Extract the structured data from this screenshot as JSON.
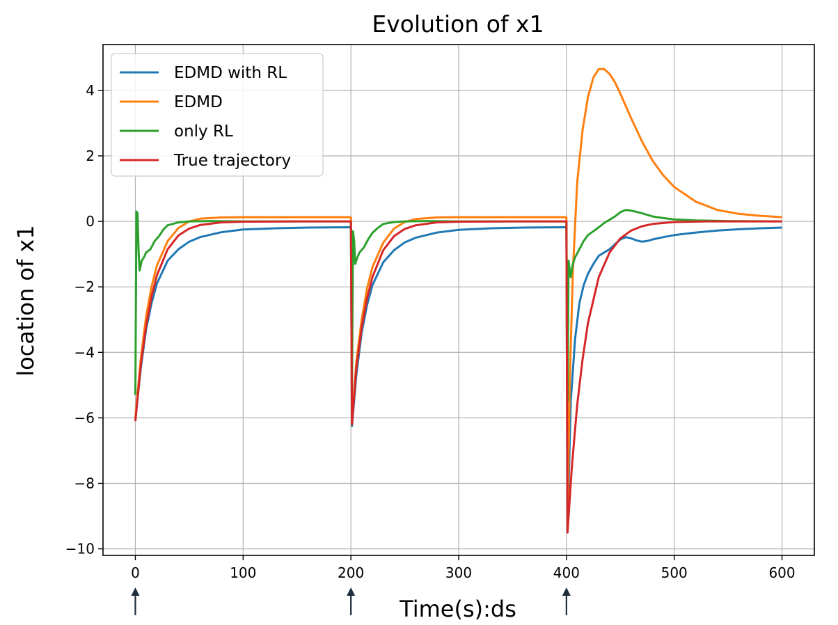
{
  "chart_data": {
    "type": "line",
    "title": "Evolution of x1",
    "xlabel": "Time(s):ds",
    "ylabel": "location of x1",
    "xlim": [
      -30,
      630
    ],
    "ylim": [
      -10.2,
      5.4
    ],
    "xticks": [
      0,
      100,
      200,
      300,
      400,
      500,
      600
    ],
    "yticks": [
      -10,
      -8,
      -6,
      -4,
      -2,
      0,
      2,
      4
    ],
    "xtick_labels": [
      "0",
      "100",
      "200",
      "300",
      "400",
      "500",
      "600"
    ],
    "ytick_labels": [
      "−10",
      "−8",
      "−6",
      "−4",
      "−2",
      "0",
      "2",
      "4"
    ],
    "grid": true,
    "legend_position": "top-left",
    "markers": {
      "type": "arrow-up",
      "x": [
        0,
        200,
        400
      ],
      "color": "#1f2d3a"
    },
    "series": [
      {
        "name": "EDMD with RL",
        "color": "#1f77b4",
        "points": [
          [
            0,
            -6.05
          ],
          [
            5,
            -4.5
          ],
          [
            10,
            -3.3
          ],
          [
            15,
            -2.5
          ],
          [
            20,
            -1.9
          ],
          [
            30,
            -1.2
          ],
          [
            40,
            -0.85
          ],
          [
            50,
            -0.62
          ],
          [
            60,
            -0.48
          ],
          [
            80,
            -0.33
          ],
          [
            100,
            -0.25
          ],
          [
            130,
            -0.21
          ],
          [
            160,
            -0.19
          ],
          [
            199,
            -0.18
          ],
          [
            200,
            -0.2
          ],
          [
            201,
            -6.25
          ],
          [
            205,
            -4.7
          ],
          [
            210,
            -3.4
          ],
          [
            215,
            -2.55
          ],
          [
            220,
            -1.95
          ],
          [
            230,
            -1.25
          ],
          [
            240,
            -0.88
          ],
          [
            250,
            -0.64
          ],
          [
            260,
            -0.5
          ],
          [
            280,
            -0.34
          ],
          [
            300,
            -0.26
          ],
          [
            330,
            -0.21
          ],
          [
            360,
            -0.19
          ],
          [
            399,
            -0.18
          ],
          [
            400,
            -0.2
          ],
          [
            401,
            -9.45
          ],
          [
            404,
            -5.5
          ],
          [
            408,
            -3.6
          ],
          [
            412,
            -2.5
          ],
          [
            416,
            -1.95
          ],
          [
            420,
            -1.6
          ],
          [
            425,
            -1.3
          ],
          [
            430,
            -1.05
          ],
          [
            435,
            -0.95
          ],
          [
            440,
            -0.85
          ],
          [
            445,
            -0.7
          ],
          [
            450,
            -0.55
          ],
          [
            455,
            -0.48
          ],
          [
            460,
            -0.52
          ],
          [
            465,
            -0.58
          ],
          [
            470,
            -0.62
          ],
          [
            475,
            -0.6
          ],
          [
            480,
            -0.55
          ],
          [
            490,
            -0.48
          ],
          [
            500,
            -0.42
          ],
          [
            520,
            -0.34
          ],
          [
            540,
            -0.28
          ],
          [
            560,
            -0.24
          ],
          [
            580,
            -0.21
          ],
          [
            600,
            -0.19
          ]
        ]
      },
      {
        "name": "EDMD",
        "color": "#ff7f0e",
        "points": [
          [
            0,
            -6.0
          ],
          [
            5,
            -4.2
          ],
          [
            10,
            -2.9
          ],
          [
            15,
            -2.0
          ],
          [
            20,
            -1.35
          ],
          [
            30,
            -0.6
          ],
          [
            40,
            -0.2
          ],
          [
            50,
            -0.0
          ],
          [
            60,
            0.08
          ],
          [
            80,
            0.12
          ],
          [
            100,
            0.13
          ],
          [
            150,
            0.13
          ],
          [
            199,
            0.13
          ],
          [
            200,
            0.12
          ],
          [
            201,
            -6.1
          ],
          [
            205,
            -4.3
          ],
          [
            210,
            -3.0
          ],
          [
            215,
            -2.05
          ],
          [
            220,
            -1.4
          ],
          [
            230,
            -0.65
          ],
          [
            240,
            -0.22
          ],
          [
            250,
            -0.02
          ],
          [
            260,
            0.07
          ],
          [
            280,
            0.12
          ],
          [
            300,
            0.13
          ],
          [
            350,
            0.13
          ],
          [
            399,
            0.13
          ],
          [
            400,
            0.12
          ],
          [
            401,
            -9.3
          ],
          [
            403,
            -5.0
          ],
          [
            406,
            -1.5
          ],
          [
            410,
            1.2
          ],
          [
            415,
            2.8
          ],
          [
            420,
            3.8
          ],
          [
            425,
            4.4
          ],
          [
            430,
            4.65
          ],
          [
            435,
            4.65
          ],
          [
            440,
            4.5
          ],
          [
            445,
            4.25
          ],
          [
            450,
            3.9
          ],
          [
            460,
            3.15
          ],
          [
            470,
            2.45
          ],
          [
            480,
            1.85
          ],
          [
            490,
            1.4
          ],
          [
            500,
            1.05
          ],
          [
            520,
            0.6
          ],
          [
            540,
            0.35
          ],
          [
            560,
            0.23
          ],
          [
            580,
            0.17
          ],
          [
            600,
            0.13
          ]
        ]
      },
      {
        "name": "only RL",
        "color": "#2ca02c",
        "points": [
          [
            0,
            -5.3
          ],
          [
            1,
            0.3
          ],
          [
            2,
            0.25
          ],
          [
            3,
            -0.9
          ],
          [
            4,
            -1.5
          ],
          [
            6,
            -1.2
          ],
          [
            8,
            -1.1
          ],
          [
            10,
            -0.95
          ],
          [
            14,
            -0.85
          ],
          [
            18,
            -0.6
          ],
          [
            22,
            -0.45
          ],
          [
            26,
            -0.25
          ],
          [
            30,
            -0.12
          ],
          [
            40,
            -0.03
          ],
          [
            50,
            0.0
          ],
          [
            70,
            0.01
          ],
          [
            100,
            0.0
          ],
          [
            199,
            0.0
          ],
          [
            200,
            0.0
          ],
          [
            201,
            -5.2
          ],
          [
            202,
            -0.3
          ],
          [
            203,
            -0.6
          ],
          [
            204,
            -1.3
          ],
          [
            206,
            -1.1
          ],
          [
            208,
            -0.95
          ],
          [
            212,
            -0.8
          ],
          [
            216,
            -0.55
          ],
          [
            220,
            -0.35
          ],
          [
            225,
            -0.2
          ],
          [
            230,
            -0.08
          ],
          [
            240,
            -0.02
          ],
          [
            250,
            0.0
          ],
          [
            270,
            0.01
          ],
          [
            300,
            0.0
          ],
          [
            399,
            0.0
          ],
          [
            400,
            0.0
          ],
          [
            401,
            -5.5
          ],
          [
            402,
            -1.2
          ],
          [
            404,
            -1.7
          ],
          [
            406,
            -1.3
          ],
          [
            408,
            -1.1
          ],
          [
            412,
            -0.85
          ],
          [
            416,
            -0.6
          ],
          [
            420,
            -0.42
          ],
          [
            425,
            -0.3
          ],
          [
            430,
            -0.18
          ],
          [
            435,
            -0.05
          ],
          [
            440,
            0.05
          ],
          [
            445,
            0.15
          ],
          [
            450,
            0.28
          ],
          [
            455,
            0.35
          ],
          [
            460,
            0.33
          ],
          [
            470,
            0.25
          ],
          [
            480,
            0.15
          ],
          [
            490,
            0.1
          ],
          [
            500,
            0.06
          ],
          [
            520,
            0.03
          ],
          [
            550,
            0.01
          ],
          [
            600,
            0.0
          ]
        ]
      },
      {
        "name": "True trajectory",
        "color": "#d62728",
        "points": [
          [
            0,
            -6.1
          ],
          [
            5,
            -4.4
          ],
          [
            10,
            -3.2
          ],
          [
            15,
            -2.3
          ],
          [
            20,
            -1.65
          ],
          [
            30,
            -0.85
          ],
          [
            40,
            -0.43
          ],
          [
            50,
            -0.22
          ],
          [
            60,
            -0.11
          ],
          [
            80,
            -0.03
          ],
          [
            100,
            -0.01
          ],
          [
            150,
            0.0
          ],
          [
            199,
            0.0
          ],
          [
            200,
            0.0
          ],
          [
            201,
            -6.2
          ],
          [
            205,
            -4.5
          ],
          [
            210,
            -3.25
          ],
          [
            215,
            -2.35
          ],
          [
            220,
            -1.7
          ],
          [
            230,
            -0.88
          ],
          [
            240,
            -0.45
          ],
          [
            250,
            -0.23
          ],
          [
            260,
            -0.12
          ],
          [
            280,
            -0.03
          ],
          [
            300,
            -0.01
          ],
          [
            350,
            0.0
          ],
          [
            399,
            0.0
          ],
          [
            400,
            0.0
          ],
          [
            401,
            -9.5
          ],
          [
            405,
            -7.5
          ],
          [
            410,
            -5.6
          ],
          [
            415,
            -4.2
          ],
          [
            420,
            -3.1
          ],
          [
            430,
            -1.7
          ],
          [
            440,
            -0.95
          ],
          [
            450,
            -0.52
          ],
          [
            460,
            -0.28
          ],
          [
            470,
            -0.15
          ],
          [
            480,
            -0.08
          ],
          [
            500,
            -0.02
          ],
          [
            530,
            0.0
          ],
          [
            600,
            0.0
          ]
        ]
      }
    ]
  }
}
